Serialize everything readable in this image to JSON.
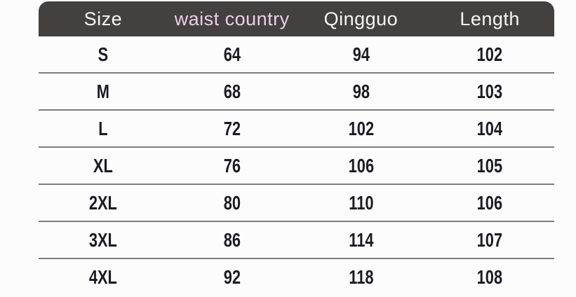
{
  "chart_data": {
    "type": "table",
    "columns": [
      "Size",
      "waist country",
      "Qingguo",
      "Length"
    ],
    "rows": [
      [
        "S",
        "64",
        "94",
        "102"
      ],
      [
        "M",
        "68",
        "98",
        "103"
      ],
      [
        "L",
        "72",
        "102",
        "104"
      ],
      [
        "XL",
        "76",
        "106",
        "105"
      ],
      [
        "2XL",
        "80",
        "110",
        "106"
      ],
      [
        "3XL",
        "86",
        "114",
        "107"
      ],
      [
        "4XL",
        "92",
        "118",
        "108"
      ]
    ],
    "layout_hints": {
      "header_style": "dark rounded bar",
      "highlight_column": "waist country",
      "grid": "horizontal dividers only"
    }
  },
  "colors": {
    "header_bg": "#434040",
    "header_text": "#f7f7f7",
    "header_highlight_text": "#eecce8",
    "body_text": "#1b1b24",
    "divider": "#7d7d7d",
    "page_bg": "#fcfcfc"
  }
}
